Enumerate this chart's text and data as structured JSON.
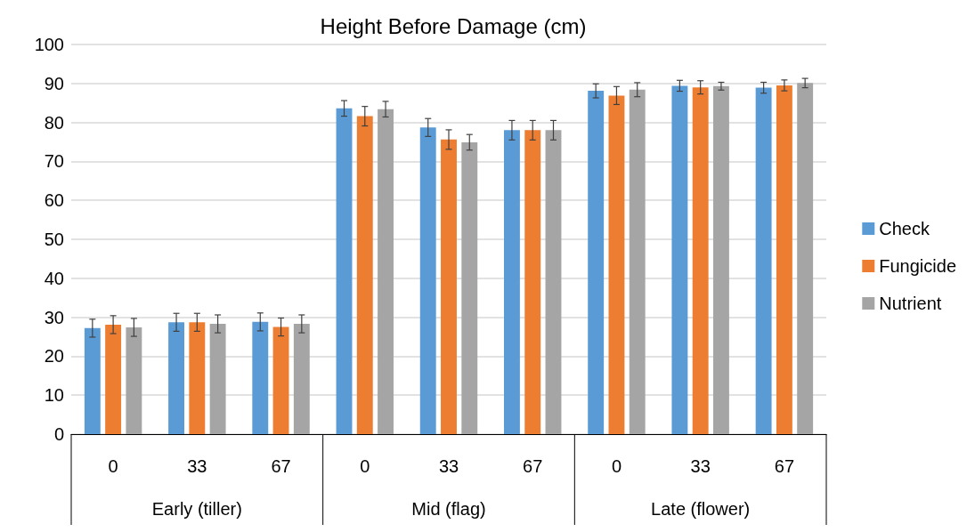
{
  "chart_data": {
    "type": "bar",
    "title": "Height Before Damage (cm)",
    "categories": [
      "0",
      "33",
      "67",
      "0",
      "33",
      "67",
      "0",
      "33",
      "67"
    ],
    "annotations": [
      "Early (tiller)",
      "Mid (flag)",
      "Late (flower)"
    ],
    "series": [
      {
        "name": "Check",
        "color": "#5b9bd5",
        "values": [
          27.2,
          28.7,
          28.8,
          83.6,
          78.7,
          78.0,
          88.1,
          89.4,
          88.9
        ],
        "errors": [
          2.3,
          2.3,
          2.3,
          2.0,
          2.3,
          2.5,
          1.8,
          1.4,
          1.4
        ]
      },
      {
        "name": "Fungicide",
        "color": "#ed7d31",
        "values": [
          28.1,
          28.7,
          27.5,
          81.6,
          75.6,
          78.0,
          86.9,
          89.0,
          89.5
        ],
        "errors": [
          2.3,
          2.3,
          2.3,
          2.5,
          2.5,
          2.5,
          2.3,
          1.7,
          1.4
        ]
      },
      {
        "name": "Nutrient",
        "color": "#a5a5a5",
        "values": [
          27.4,
          28.3,
          28.3,
          83.4,
          74.9,
          78.0,
          88.4,
          89.3,
          90.1
        ],
        "errors": [
          2.3,
          2.3,
          2.3,
          2.0,
          2.0,
          2.5,
          1.8,
          1.0,
          1.2
        ]
      }
    ],
    "ylim": [
      0,
      100
    ],
    "yticks": [
      0,
      10,
      20,
      30,
      40,
      50,
      60,
      70,
      80,
      90,
      100
    ],
    "grid": "y",
    "legend": "right"
  }
}
